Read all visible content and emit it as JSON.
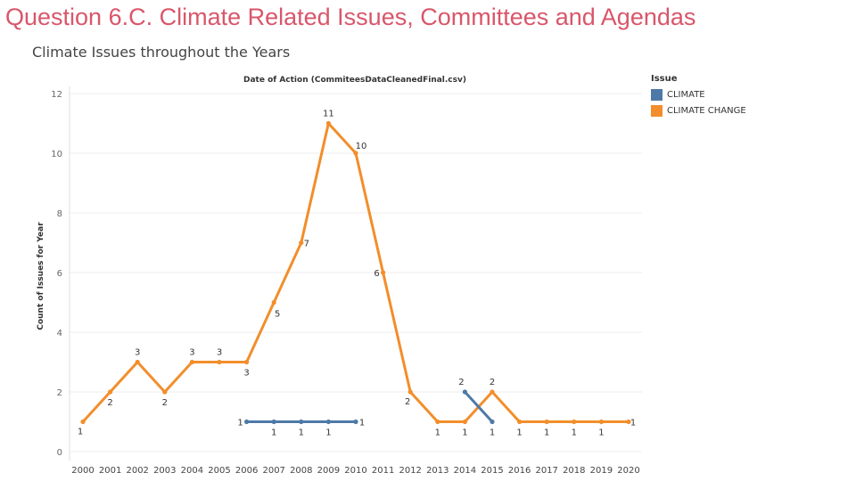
{
  "page": {
    "title": "Question 6.C. Climate Related Issues, Committees and Agendas"
  },
  "chart_data": {
    "type": "line",
    "title": "Climate Issues throughout the Years",
    "xlabel": "Date of Action (CommiteesDataCleanedFinal.csv)",
    "ylabel": "Count of Issues for Year",
    "x": [
      "2000",
      "2001",
      "2002",
      "2003",
      "2004",
      "2005",
      "2006",
      "2007",
      "2008",
      "2009",
      "2010",
      "2011",
      "2012",
      "2013",
      "2014",
      "2015",
      "2016",
      "2017",
      "2018",
      "2019",
      "2020"
    ],
    "ylim": [
      0,
      12
    ],
    "yticks": [
      0,
      2,
      4,
      6,
      8,
      10,
      12
    ],
    "grid": true,
    "legend": {
      "title": "Issue",
      "position": "top-right"
    },
    "series": [
      {
        "name": "CLIMATE",
        "color": "#4e79a7",
        "points": [
          {
            "x": "2006",
            "y": 1
          },
          {
            "x": "2007",
            "y": 1
          },
          {
            "x": "2008",
            "y": 1
          },
          {
            "x": "2009",
            "y": 1
          },
          {
            "x": "2010",
            "y": 1
          }
        ],
        "points2": [
          {
            "x": "2014",
            "y": 2
          },
          {
            "x": "2015",
            "y": 1
          }
        ]
      },
      {
        "name": "CLIMATE CHANGE",
        "color": "#f28e2b",
        "points": [
          {
            "x": "2000",
            "y": 1
          },
          {
            "x": "2001",
            "y": 2
          },
          {
            "x": "2002",
            "y": 3
          },
          {
            "x": "2003",
            "y": 2
          },
          {
            "x": "2004",
            "y": 3
          },
          {
            "x": "2005",
            "y": 3
          },
          {
            "x": "2006",
            "y": 3
          },
          {
            "x": "2007",
            "y": 5
          },
          {
            "x": "2008",
            "y": 7
          },
          {
            "x": "2009",
            "y": 11
          },
          {
            "x": "2010",
            "y": 10
          },
          {
            "x": "2011",
            "y": 6
          },
          {
            "x": "2012",
            "y": 2
          },
          {
            "x": "2013",
            "y": 1
          },
          {
            "x": "2014",
            "y": 1
          },
          {
            "x": "2015",
            "y": 2
          },
          {
            "x": "2016",
            "y": 1
          },
          {
            "x": "2017",
            "y": 1
          },
          {
            "x": "2018",
            "y": 1
          },
          {
            "x": "2019",
            "y": 1
          },
          {
            "x": "2020",
            "y": 1
          }
        ]
      }
    ]
  }
}
